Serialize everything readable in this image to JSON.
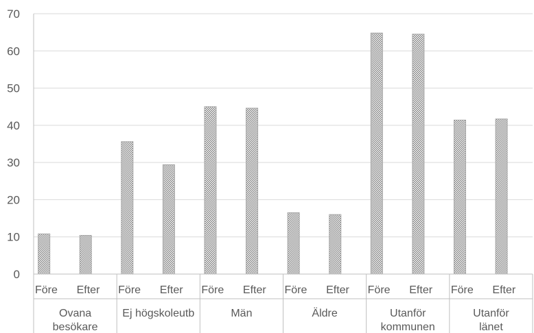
{
  "chart_data": {
    "type": "bar",
    "title": "",
    "xlabel": "",
    "ylabel": "",
    "ylim": [
      0,
      70
    ],
    "yticks": [
      "0",
      "10",
      "20",
      "30",
      "40",
      "50",
      "60",
      "70"
    ],
    "grid": true,
    "legend": "none",
    "bar_fill": "#c8c8c8",
    "bar_pattern_color": "#7f7f7f",
    "groups": [
      {
        "label_lines": [
          "Ovana",
          "besökare"
        ],
        "categories": [
          "Före",
          "Efter"
        ],
        "values": [
          10.8,
          10.4
        ]
      },
      {
        "label_lines": [
          "Ej högskoleutb"
        ],
        "categories": [
          "Före",
          "Efter"
        ],
        "values": [
          35.6,
          29.4
        ]
      },
      {
        "label_lines": [
          "Män"
        ],
        "categories": [
          "Före",
          "Efter"
        ],
        "values": [
          45.0,
          44.6
        ]
      },
      {
        "label_lines": [
          "Äldre"
        ],
        "categories": [
          "Före",
          "Efter"
        ],
        "values": [
          16.5,
          16.0
        ]
      },
      {
        "label_lines": [
          "Utanför",
          "kommunen"
        ],
        "categories": [
          "Före",
          "Efter"
        ],
        "values": [
          64.8,
          64.5
        ]
      },
      {
        "label_lines": [
          "Utanför",
          "länet"
        ],
        "categories": [
          "Före",
          "Efter"
        ],
        "values": [
          41.4,
          41.7
        ]
      }
    ]
  }
}
